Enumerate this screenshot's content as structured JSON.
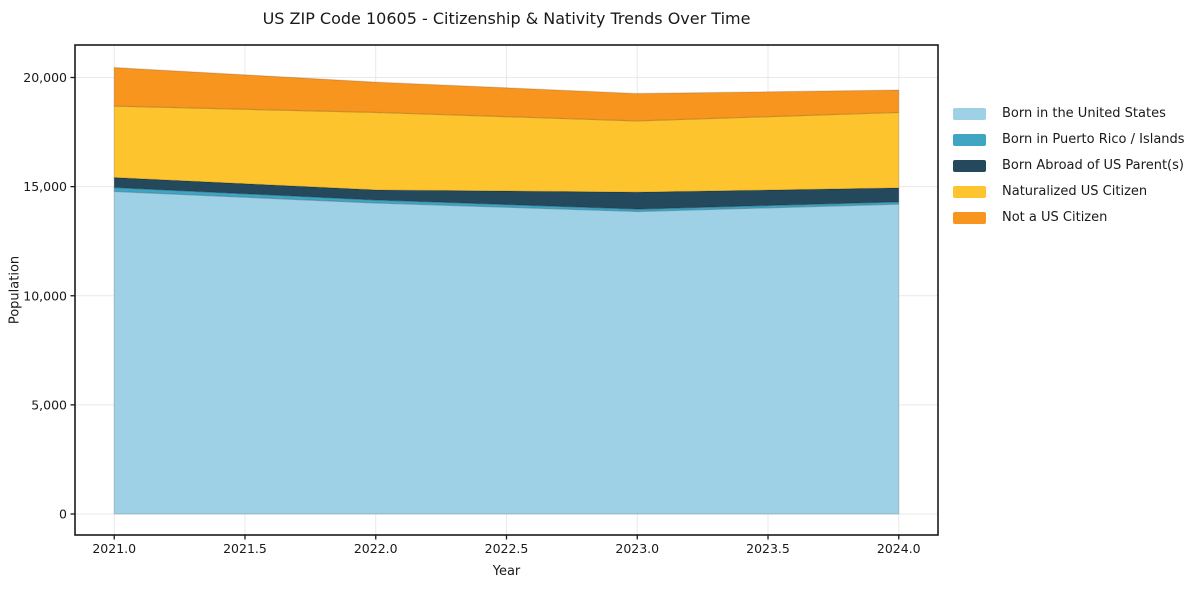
{
  "page": {
    "background": "#ffffff",
    "text_color": "#1a1a1a",
    "grid_color": "#e9e9e9",
    "spine_color": "#1a1a1a"
  },
  "chart_data": {
    "type": "area",
    "stacked": true,
    "title": "US ZIP Code 10605 - Citizenship & Nativity Trends Over Time",
    "xlabel": "Year",
    "ylabel": "Population",
    "x": [
      2021,
      2022,
      2023,
      2024
    ],
    "series": [
      {
        "name": "Born in the United States",
        "color": "#9ed1e6",
        "values": [
          14780,
          14250,
          13860,
          14200
        ]
      },
      {
        "name": "Born in Puerto Rico / Islands",
        "color": "#3fa5c3",
        "values": [
          180,
          140,
          110,
          100
        ]
      },
      {
        "name": "Born Abroad of US Parent(s)",
        "color": "#24485c",
        "values": [
          460,
          460,
          780,
          640
        ]
      },
      {
        "name": "Naturalized US Citizen",
        "color": "#fdc42e",
        "values": [
          3270,
          3550,
          3260,
          3460
        ]
      },
      {
        "name": "Not a US Citizen",
        "color": "#f8951e",
        "values": [
          1770,
          1390,
          1260,
          1030
        ]
      }
    ],
    "totals": [
      20460,
      19790,
      19270,
      19430
    ],
    "x_ticks": [
      2021.0,
      2021.5,
      2022.0,
      2022.5,
      2023.0,
      2023.5,
      2024.0
    ],
    "x_tick_labels": [
      "2021.0",
      "2021.5",
      "2022.0",
      "2022.5",
      "2023.0",
      "2023.5",
      "2024.0"
    ],
    "y_ticks": [
      0,
      5000,
      10000,
      15000,
      20000
    ],
    "y_tick_labels": [
      "0",
      "5,000",
      "10,000",
      "15,000",
      "20,000"
    ],
    "xlim": [
      2020.85,
      2024.15
    ],
    "ylim": [
      -962,
      21490
    ],
    "grid": true,
    "legend_position": "right-outside"
  }
}
